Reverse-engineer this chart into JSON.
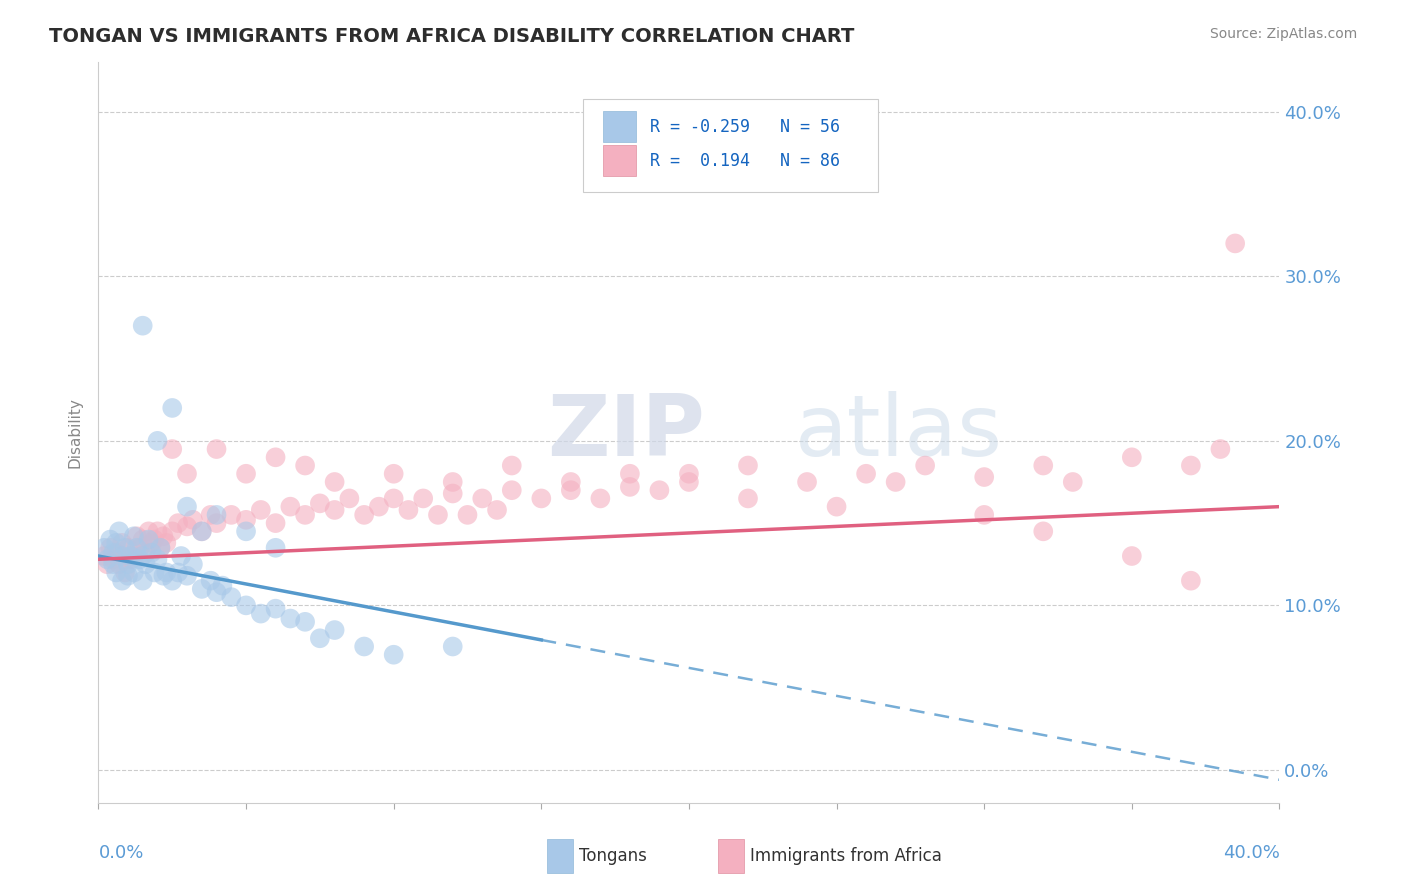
{
  "title": "TONGAN VS IMMIGRANTS FROM AFRICA DISABILITY CORRELATION CHART",
  "source": "Source: ZipAtlas.com",
  "ylabel": "Disability",
  "y_tick_labels": [
    "0.0%",
    "10.0%",
    "20.0%",
    "30.0%",
    "40.0%"
  ],
  "y_tick_values": [
    0,
    10,
    20,
    30,
    40
  ],
  "x_range": [
    0,
    40
  ],
  "y_range": [
    -2,
    43
  ],
  "r_tongan": -0.259,
  "n_tongan": 56,
  "r_africa": 0.194,
  "n_africa": 86,
  "color_tongan": "#a8c8e8",
  "color_africa": "#f4b0c0",
  "color_tongan_line": "#5599cc",
  "color_africa_line": "#e06080",
  "legend_label_1": "Tongans",
  "legend_label_2": "Immigrants from Africa",
  "tongan_x": [
    0.2,
    0.3,
    0.4,
    0.5,
    0.5,
    0.6,
    0.6,
    0.7,
    0.8,
    0.8,
    0.9,
    1.0,
    1.0,
    1.1,
    1.2,
    1.2,
    1.3,
    1.4,
    1.5,
    1.5,
    1.6,
    1.7,
    1.8,
    1.9,
    2.0,
    2.1,
    2.2,
    2.3,
    2.5,
    2.7,
    2.8,
    3.0,
    3.2,
    3.5,
    3.8,
    4.0,
    4.2,
    4.5,
    5.0,
    5.5,
    6.0,
    6.5,
    7.0,
    8.0,
    9.0,
    1.5,
    2.0,
    2.5,
    3.0,
    3.5,
    4.0,
    5.0,
    6.0,
    7.5,
    10.0,
    12.0
  ],
  "tongan_y": [
    13.5,
    12.8,
    14.0,
    13.2,
    12.5,
    13.8,
    12.0,
    14.5,
    13.0,
    11.5,
    13.5,
    12.5,
    11.8,
    13.0,
    14.2,
    12.0,
    13.5,
    12.8,
    13.0,
    11.5,
    12.5,
    14.0,
    13.2,
    12.0,
    12.8,
    13.5,
    11.8,
    12.0,
    11.5,
    12.0,
    13.0,
    11.8,
    12.5,
    11.0,
    11.5,
    10.8,
    11.2,
    10.5,
    10.0,
    9.5,
    9.8,
    9.2,
    9.0,
    8.5,
    7.5,
    27.0,
    20.0,
    22.0,
    16.0,
    14.5,
    15.5,
    14.5,
    13.5,
    8.0,
    7.0,
    7.5
  ],
  "africa_x": [
    0.2,
    0.3,
    0.4,
    0.5,
    0.6,
    0.7,
    0.8,
    0.9,
    1.0,
    1.1,
    1.2,
    1.3,
    1.4,
    1.5,
    1.6,
    1.7,
    1.8,
    1.9,
    2.0,
    2.1,
    2.2,
    2.3,
    2.5,
    2.7,
    3.0,
    3.2,
    3.5,
    3.8,
    4.0,
    4.5,
    5.0,
    5.5,
    6.0,
    6.5,
    7.0,
    7.5,
    8.0,
    8.5,
    9.0,
    9.5,
    10.0,
    10.5,
    11.0,
    11.5,
    12.0,
    12.5,
    13.0,
    13.5,
    14.0,
    15.0,
    16.0,
    17.0,
    18.0,
    19.0,
    20.0,
    22.0,
    24.0,
    26.0,
    28.0,
    30.0,
    32.0,
    33.0,
    35.0,
    37.0,
    38.0,
    2.5,
    3.0,
    4.0,
    5.0,
    6.0,
    7.0,
    8.0,
    10.0,
    12.0,
    14.0,
    16.0,
    18.0,
    20.0,
    22.0,
    25.0,
    27.0,
    30.0,
    32.0,
    35.0,
    37.0,
    38.5
  ],
  "africa_y": [
    13.0,
    12.5,
    13.5,
    12.8,
    13.2,
    12.5,
    13.8,
    12.0,
    13.5,
    12.8,
    13.0,
    14.2,
    13.5,
    14.0,
    13.2,
    14.5,
    13.8,
    14.0,
    14.5,
    13.5,
    14.2,
    13.8,
    14.5,
    15.0,
    14.8,
    15.2,
    14.5,
    15.5,
    15.0,
    15.5,
    15.2,
    15.8,
    15.0,
    16.0,
    15.5,
    16.2,
    15.8,
    16.5,
    15.5,
    16.0,
    16.5,
    15.8,
    16.5,
    15.5,
    16.8,
    15.5,
    16.5,
    15.8,
    17.0,
    16.5,
    17.5,
    16.5,
    17.2,
    17.0,
    18.0,
    18.5,
    17.5,
    18.0,
    18.5,
    17.8,
    18.5,
    17.5,
    19.0,
    18.5,
    19.5,
    19.5,
    18.0,
    19.5,
    18.0,
    19.0,
    18.5,
    17.5,
    18.0,
    17.5,
    18.5,
    17.0,
    18.0,
    17.5,
    16.5,
    16.0,
    17.5,
    15.5,
    14.5,
    13.0,
    11.5,
    32.0
  ]
}
